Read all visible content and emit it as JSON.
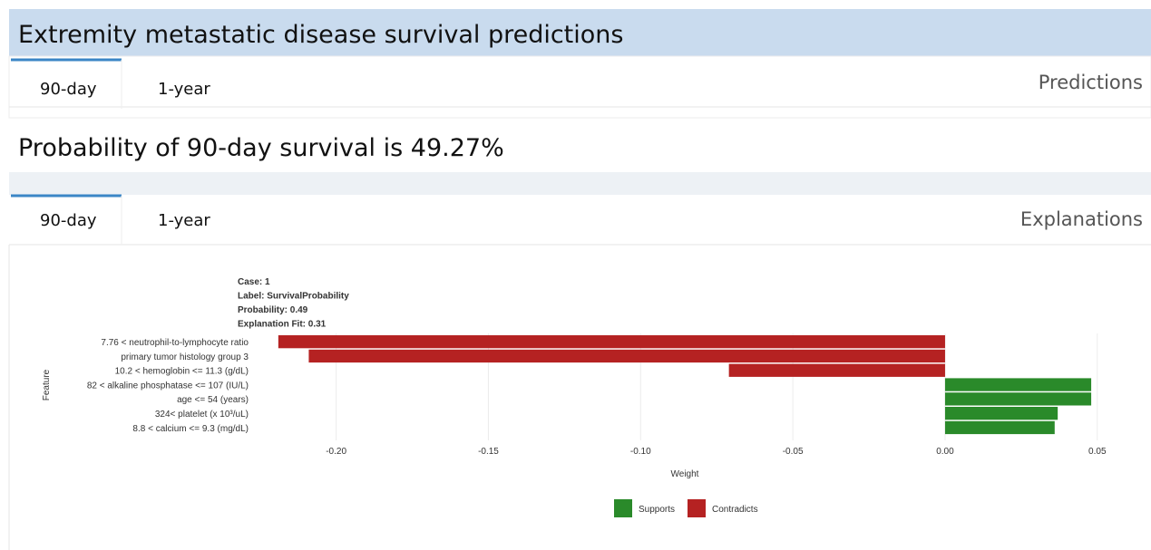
{
  "header": {
    "title": "Extremity metastatic disease survival predictions"
  },
  "predictions_panel": {
    "tabs": [
      "90-day",
      "1-year"
    ],
    "label": "Predictions",
    "result": "Probability of 90-day survival is 49.27%"
  },
  "explanations_panel": {
    "tabs": [
      "90-day",
      "1-year"
    ],
    "label": "Explanations"
  },
  "chart_data": {
    "type": "bar",
    "orientation": "horizontal",
    "annotations": [
      "Case: 1",
      "Label: SurvivalProbability",
      "Probability: 0.49",
      "Explanation Fit: 0.31"
    ],
    "y_label": "Feature",
    "x_label": "Weight",
    "categories": [
      "7.76 < neutrophil-to-lymphocyte ratio",
      "primary tumor histology group 3",
      "10.2 < hemoglobin <= 11.3 (g/dL)",
      "82 < alkaline phosphatase <= 107 (IU/L)",
      "age <= 54 (years)",
      "324< platelet (x 10³/uL)",
      "8.8 < calcium <= 9.3 (mg/dL)"
    ],
    "series": [
      {
        "name": "Supports",
        "color": "#2a8a2a",
        "values": [
          null,
          null,
          null,
          0.048,
          0.048,
          0.037,
          0.036
        ]
      },
      {
        "name": "Contradicts",
        "color": "#b52222",
        "values": [
          -0.219,
          -0.209,
          -0.071,
          null,
          null,
          null,
          null
        ]
      }
    ],
    "xlim": [
      -0.227,
      0.059
    ],
    "xticks": [
      {
        "value": -0.2,
        "label": "-0.20"
      },
      -0.15,
      {
        "value": -0.1,
        "label": "-0.10"
      },
      -0.05,
      {
        "value": 0,
        "label": "0.00"
      },
      0.05
    ],
    "grid": true
  }
}
